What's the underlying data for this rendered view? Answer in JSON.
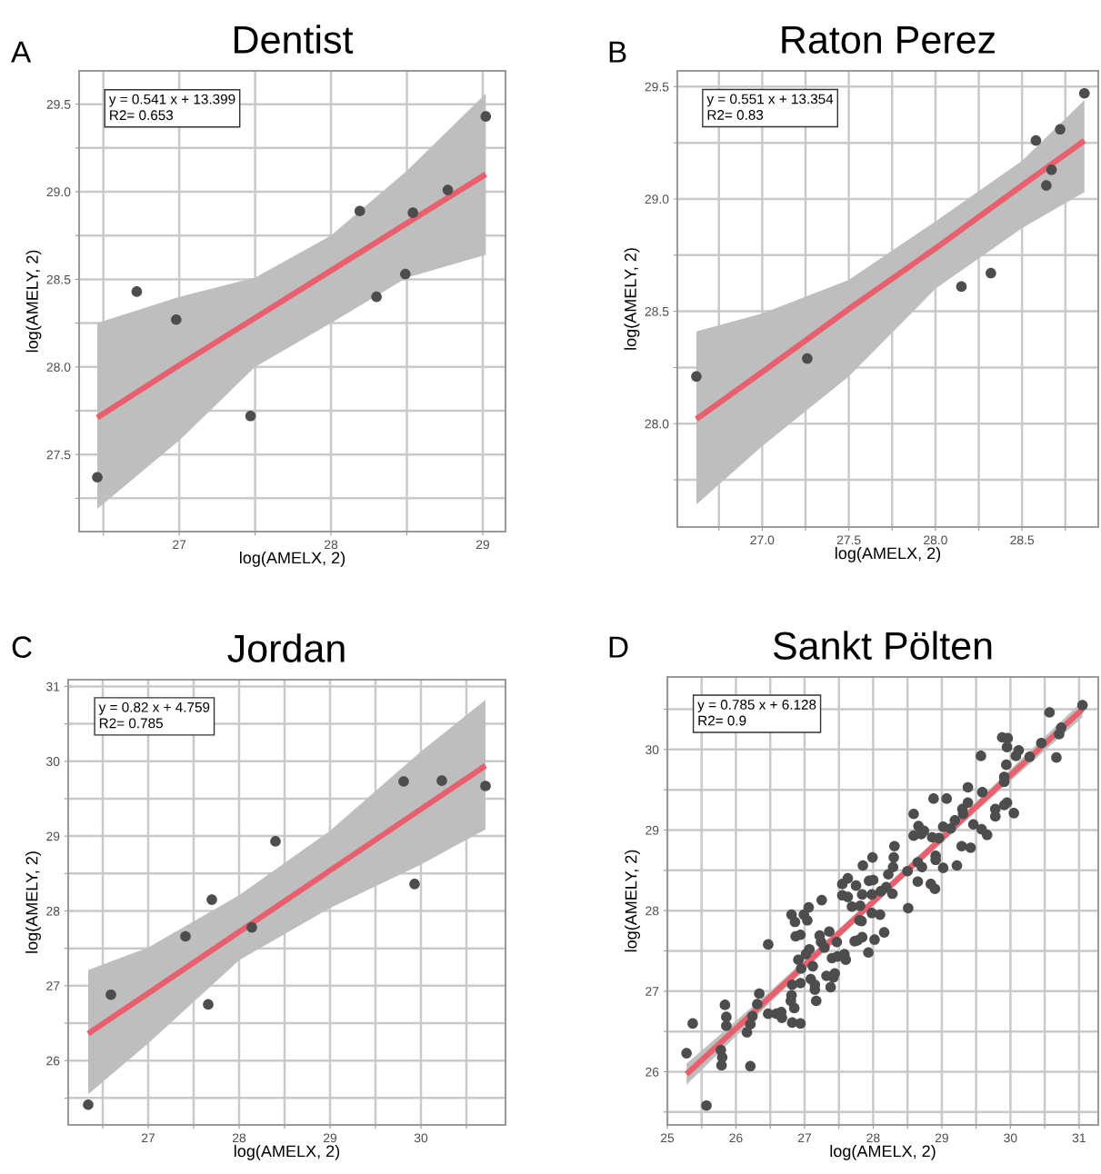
{
  "chart_data": [
    {
      "type": "scatter",
      "title": "Dentist",
      "xlabel": "log(AMELX, 2)",
      "ylabel": "log(AMELY, 2)",
      "annotations": [
        "A",
        "y = 0.541 x + 13.399\nR2= 0.653"
      ],
      "xlim": [
        26.34,
        29.15
      ],
      "ylim": [
        27.06,
        29.69
      ],
      "xticks": [
        {
          "value": 26.5,
          "label": null
        },
        27,
        {
          "value": 27.5,
          "label": null
        },
        28,
        {
          "value": 28.5,
          "label": null
        },
        29
      ],
      "yticks": [
        {
          "value": 27.25,
          "label": null
        },
        27.5,
        {
          "value": 27.75,
          "label": null
        },
        {
          "value": 28,
          "label": "28.0"
        },
        {
          "value": 28.25,
          "label": null
        },
        28.5,
        {
          "value": 28.75,
          "label": null
        },
        {
          "value": 29,
          "label": "29.0"
        },
        {
          "value": 29.25,
          "label": null
        },
        29.5
      ],
      "grid": true,
      "series": [
        {
          "type": "line",
          "color": "#e8606e",
          "x": [
            26.46,
            27.0,
            27.5,
            28.0,
            28.5,
            29.02
          ],
          "values": [
            27.71,
            28.01,
            28.28,
            28.55,
            28.82,
            29.1
          ],
          "lower": [
            27.19,
            27.58,
            28.0,
            28.25,
            28.51,
            28.64
          ],
          "upper": [
            28.25,
            28.4,
            28.51,
            28.75,
            29.12,
            29.56
          ]
        },
        {
          "marker": "circle",
          "color": "#4d4d4d",
          "x": [
            26.46,
            26.72,
            26.98,
            27.47,
            28.19,
            28.3,
            28.49,
            28.54,
            28.77,
            29.02
          ],
          "values": [
            27.37,
            28.43,
            28.27,
            27.72,
            28.89,
            28.4,
            28.53,
            28.88,
            29.01,
            29.43
          ]
        }
      ]
    },
    {
      "type": "scatter",
      "title": "Raton Perez",
      "xlabel": "log(AMELX, 2)",
      "ylabel": "log(AMELY, 2)",
      "annotations": [
        "B",
        "y = 0.551 x + 13.354\nR2= 0.83"
      ],
      "xlim": [
        26.51,
        28.94
      ],
      "ylim": [
        27.54,
        29.57
      ],
      "xticks": [
        {
          "value": 26.75,
          "label": null
        },
        {
          "value": 27,
          "label": "27.0"
        },
        {
          "value": 27.25,
          "label": null
        },
        27.5,
        {
          "value": 27.75,
          "label": null
        },
        {
          "value": 28,
          "label": "28.0"
        },
        {
          "value": 28.25,
          "label": null
        },
        28.5,
        {
          "value": 28.75,
          "label": null
        }
      ],
      "yticks": [
        {
          "value": 27.75,
          "label": null
        },
        {
          "value": 28,
          "label": "28.0"
        },
        {
          "value": 28.25,
          "label": null
        },
        28.5,
        {
          "value": 28.75,
          "label": null
        },
        {
          "value": 29,
          "label": "29.0"
        },
        {
          "value": 29.25,
          "label": null
        },
        29.5
      ],
      "grid": true,
      "series": [
        {
          "type": "line",
          "color": "#e8606e",
          "x": [
            26.62,
            27.0,
            27.5,
            28.0,
            28.5,
            28.86
          ],
          "values": [
            28.02,
            28.23,
            28.51,
            28.78,
            29.06,
            29.26
          ],
          "lower": [
            27.64,
            27.9,
            28.21,
            28.6,
            28.87,
            29.03
          ],
          "upper": [
            28.41,
            28.49,
            28.64,
            28.9,
            29.17,
            29.44
          ]
        },
        {
          "marker": "circle",
          "color": "#4d4d4d",
          "x": [
            26.62,
            27.26,
            28.15,
            28.32,
            28.58,
            28.64,
            28.67,
            28.72,
            28.86
          ],
          "values": [
            28.21,
            28.29,
            28.61,
            28.67,
            29.26,
            29.06,
            29.13,
            29.31,
            29.47
          ]
        }
      ]
    },
    {
      "type": "scatter",
      "title": "Jordan",
      "xlabel": "log(AMELX, 2)",
      "ylabel": "log(AMELY, 2)",
      "annotations": [
        "C",
        "y = 0.82 x + 4.759\nR2= 0.785"
      ],
      "xlim": [
        26.12,
        30.93
      ],
      "ylim": [
        25.14,
        31.09
      ],
      "xticks": [
        {
          "value": 26.5,
          "label": null
        },
        27,
        {
          "value": 27.5,
          "label": null
        },
        28,
        {
          "value": 28.5,
          "label": null
        },
        29,
        {
          "value": 29.5,
          "label": null
        },
        30,
        {
          "value": 30.5,
          "label": null
        }
      ],
      "yticks": [
        {
          "value": 25.5,
          "label": null
        },
        26,
        {
          "value": 26.5,
          "label": null
        },
        27,
        {
          "value": 27.5,
          "label": null
        },
        28,
        {
          "value": 28.5,
          "label": null
        },
        29,
        {
          "value": 29.5,
          "label": null
        },
        30,
        {
          "value": 30.5,
          "label": null
        },
        31
      ],
      "grid": true,
      "series": [
        {
          "type": "line",
          "color": "#e8606e",
          "x": [
            26.34,
            27.0,
            28.0,
            29.0,
            30.0,
            30.71
          ],
          "values": [
            26.36,
            26.9,
            27.72,
            28.54,
            29.36,
            29.94
          ],
          "lower": [
            25.55,
            26.23,
            27.34,
            28.04,
            28.62,
            29.09
          ],
          "upper": [
            27.21,
            27.51,
            28.21,
            29.07,
            30.13,
            30.82
          ]
        },
        {
          "marker": "circle",
          "color": "#4d4d4d",
          "x": [
            26.34,
            26.59,
            27.41,
            27.66,
            27.7,
            28.14,
            28.4,
            29.81,
            29.93,
            30.23,
            30.71
          ],
          "values": [
            25.41,
            26.88,
            27.66,
            26.75,
            28.15,
            27.78,
            28.93,
            29.73,
            28.36,
            29.74,
            29.67
          ]
        }
      ]
    },
    {
      "type": "scatter",
      "title": "Sankt Pölten",
      "xlabel": "log(AMELX, 2)",
      "ylabel": "log(AMELY, 2)",
      "annotations": [
        "D",
        "y = 0.785 x + 6.128\nR2= 0.9"
      ],
      "xlim": [
        25,
        31.28
      ],
      "ylim": [
        25.34,
        30.9
      ],
      "xticks": [
        25,
        {
          "value": 25.5,
          "label": null
        },
        26,
        {
          "value": 26.5,
          "label": null
        },
        27,
        {
          "value": 27.5,
          "label": null
        },
        28,
        {
          "value": 28.5,
          "label": null
        },
        29,
        {
          "value": 29.5,
          "label": null
        },
        30,
        {
          "value": 30.5,
          "label": null
        },
        31
      ],
      "yticks": [
        {
          "value": 25.5,
          "label": null
        },
        26,
        {
          "value": 26.5,
          "label": null
        },
        27,
        {
          "value": 27.5,
          "label": null
        },
        28,
        {
          "value": 28.5,
          "label": null
        },
        29,
        {
          "value": 29.5,
          "label": null
        },
        30,
        {
          "value": 30.5,
          "label": null
        }
      ],
      "grid": true,
      "series": [
        {
          "type": "line",
          "color": "#e8606e",
          "x": [
            25.28,
            26.5,
            28.0,
            29.5,
            31.05
          ],
          "values": [
            25.97,
            26.93,
            28.11,
            29.29,
            30.5
          ],
          "lower": [
            25.84,
            26.86,
            28.06,
            29.23,
            30.4
          ],
          "upper": [
            26.1,
            27.0,
            28.16,
            29.35,
            30.6
          ]
        },
        {
          "marker": "circle",
          "color": "#4d4d4d",
          "x": [
            25.28,
            25.37,
            25.57,
            25.78,
            25.8,
            25.79,
            25.84,
            25.86,
            25.86,
            26.16,
            26.21,
            26.21,
            26.24,
            26.31,
            26.34,
            26.47,
            26.47,
            26.59,
            26.66,
            26.67,
            26.81,
            26.82,
            26.81,
            26.8,
            26.82,
            26.85,
            26.86,
            26.87,
            26.91,
            26.94,
            26.94,
            26.94,
            26.95,
            26.99,
            27.02,
            27.04,
            27.06,
            27.07,
            27.09,
            27.12,
            27.15,
            27.15,
            27.17,
            27.25,
            27.22,
            27.24,
            27.29,
            27.32,
            27.36,
            27.38,
            27.4,
            27.42,
            27.44,
            27.47,
            27.48,
            27.55,
            27.55,
            27.58,
            27.6,
            27.63,
            27.63,
            27.69,
            27.73,
            27.75,
            27.77,
            27.8,
            27.81,
            27.83,
            27.85,
            27.84,
            27.84,
            27.93,
            27.94,
            27.98,
            27.99,
            28.0,
            27.98,
            28.02,
            28.1,
            28.11,
            28.16,
            28.19,
            28.22,
            28.28,
            28.29,
            28.3,
            28.31,
            28.5,
            28.51,
            28.59,
            28.59,
            28.65,
            28.65,
            28.66,
            28.7,
            28.71,
            28.74,
            28.84,
            28.86,
            28.88,
            28.9,
            28.91,
            28.91,
            28.96,
            29.02,
            29.02,
            29.07,
            29.13,
            29.19,
            29.22,
            29.29,
            29.3,
            29.31,
            29.38,
            29.38,
            29.42,
            29.46,
            29.57,
            29.58,
            29.59,
            29.66,
            29.78,
            29.78,
            29.88,
            29.91,
            29.91,
            29.91,
            29.94,
            29.95,
            29.96,
            29.95,
            30.05,
            30.08,
            30.12,
            30.28,
            30.45,
            30.57,
            30.67,
            30.71,
            30.74,
            31.05
          ],
          "values": [
            26.23,
            26.6,
            25.58,
            26.27,
            26.18,
            26.08,
            26.83,
            26.68,
            26.57,
            26.49,
            26.07,
            26.59,
            26.69,
            26.84,
            26.97,
            27.58,
            26.72,
            26.72,
            26.74,
            26.67,
            27.95,
            27.08,
            26.95,
            26.88,
            26.61,
            26.79,
            27.86,
            27.68,
            27.39,
            27.7,
            27.1,
            26.6,
            27.28,
            27.95,
            27.46,
            27.88,
            28.04,
            27.52,
            27.15,
            27.31,
            27.08,
            27.02,
            26.88,
            28.13,
            27.69,
            27.61,
            27.54,
            27.19,
            27.74,
            27.05,
            27.41,
            27.17,
            27.22,
            27.61,
            27.43,
            28.33,
            28.19,
            27.46,
            27.39,
            28.4,
            28.17,
            28.05,
            27.62,
            28.31,
            27.63,
            27.88,
            28.06,
            27.87,
            28.56,
            28.2,
            27.67,
            27.48,
            28.37,
            28.2,
            28.66,
            28.38,
            27.97,
            27.64,
            27.95,
            28.24,
            27.73,
            28.29,
            28.45,
            28.21,
            28.54,
            28.66,
            28.8,
            28.49,
            28.03,
            29.2,
            28.93,
            28.6,
            28.36,
            29.05,
            28.95,
            28.54,
            28.99,
            28.33,
            28.91,
            29.39,
            28.27,
            28.68,
            28.63,
            28.9,
            28.53,
            29.04,
            29.39,
            29.02,
            29.12,
            28.56,
            28.8,
            29.26,
            29.2,
            29.53,
            29.34,
            28.78,
            29.07,
            29.92,
            29.01,
            29.47,
            28.94,
            29.26,
            29.17,
            30.15,
            29.66,
            29.6,
            29.31,
            29.81,
            30.03,
            30.14,
            29.34,
            29.21,
            29.92,
            29.99,
            29.91,
            30.08,
            30.46,
            29.9,
            30.19,
            30.27,
            30.55
          ]
        }
      ]
    }
  ]
}
